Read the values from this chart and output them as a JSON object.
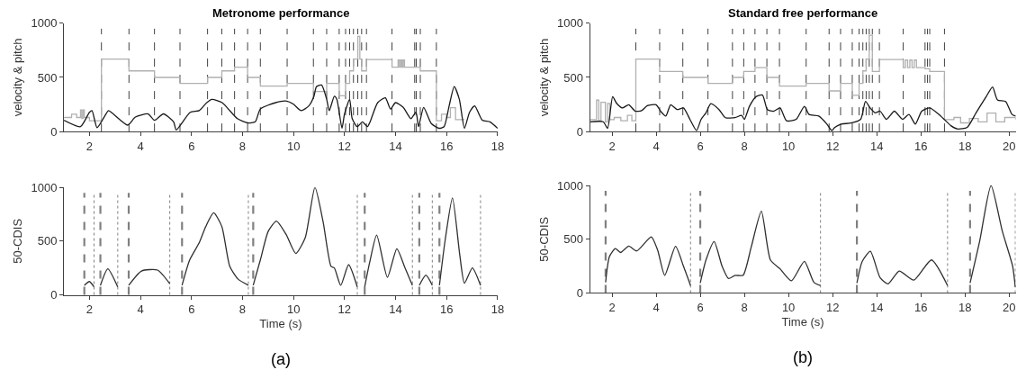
{
  "chart_data": [
    {
      "type": "line",
      "title": "Metronome performance",
      "ylabel": "velocity & pitch",
      "xlim": [
        1,
        18
      ],
      "xticks": [
        2,
        4,
        6,
        8,
        10,
        12,
        14,
        16,
        18
      ],
      "ylim": [
        0,
        1000
      ],
      "yticks": [
        0,
        500,
        1000
      ],
      "series": [
        {
          "type": "step",
          "color": "#b0b0b0",
          "x": [
            1.0,
            1.3,
            1.5,
            1.65,
            1.7,
            1.75,
            1.8,
            2.0,
            2.2,
            2.47,
            3.55,
            4.55,
            5.55,
            6.63,
            7.19,
            7.69,
            8.2,
            8.7,
            9.75,
            10.78,
            11.3,
            11.79,
            12.04,
            12.2,
            12.35,
            12.52,
            12.6,
            12.67,
            12.86,
            13.86,
            14.1,
            14.15,
            14.2,
            14.25,
            14.3,
            14.35,
            14.75,
            14.97,
            15.6,
            15.8,
            16.0,
            16.15,
            16.35,
            16.7
          ],
          "values": [
            130,
            160,
            130,
            200,
            120,
            200,
            130,
            100,
            100,
            670,
            560,
            500,
            445,
            500,
            560,
            595,
            500,
            420,
            445,
            370,
            445,
            330,
            445,
            560,
            670,
            880,
            670,
            560,
            665,
            595,
            660,
            595,
            660,
            595,
            660,
            595,
            595,
            560,
            100,
            160,
            130,
            220,
            110,
            110
          ]
        },
        {
          "type": "line",
          "color": "#1a1a1a",
          "x": [
            1.0,
            1.65,
            2.0,
            2.1,
            2.3,
            2.65,
            2.75,
            3.5,
            3.8,
            4.3,
            4.55,
            4.9,
            5.3,
            5.4,
            5.95,
            6.3,
            6.6,
            6.8,
            7.2,
            7.8,
            8.2,
            8.5,
            8.7,
            9.3,
            9.7,
            10.0,
            10.3,
            10.6,
            10.8,
            10.9,
            11.1,
            11.3,
            11.4,
            11.6,
            11.7,
            11.9,
            12.0,
            12.2,
            12.3,
            12.5,
            12.7,
            12.9,
            13.0,
            13.3,
            13.6,
            13.8,
            14.0,
            14.3,
            14.6,
            14.8,
            14.9,
            15.1,
            15.4,
            15.7,
            15.9,
            16.1,
            16.3,
            16.5,
            16.7,
            16.9,
            17.1,
            17.4,
            17.7,
            18.0
          ],
          "values": [
            104,
            45,
            178,
            193,
            36,
            163,
            193,
            59,
            134,
            163,
            104,
            163,
            89,
            15,
            178,
            193,
            267,
            297,
            267,
            119,
            80,
            90,
            208,
            267,
            282,
            252,
            193,
            237,
            326,
            415,
            430,
            297,
            193,
            326,
            297,
            30,
            163,
            297,
            119,
            45,
            89,
            45,
            89,
            267,
            312,
            208,
            267,
            223,
            119,
            178,
            45,
            223,
            74,
            30,
            45,
            237,
            415,
            297,
            30,
            178,
            237,
            104,
            89,
            30
          ]
        }
      ],
      "ref_lines": [
        {
          "axis": "x",
          "value": 2.47,
          "line_style": "dashed",
          "color": "#404040"
        },
        {
          "axis": "x",
          "value": 3.55,
          "line_style": "dashed",
          "color": "#404040"
        },
        {
          "axis": "x",
          "value": 4.55,
          "line_style": "dashed",
          "color": "#404040"
        },
        {
          "axis": "x",
          "value": 5.55,
          "line_style": "dashed",
          "color": "#404040"
        },
        {
          "axis": "x",
          "value": 6.63,
          "line_style": "dashed",
          "color": "#404040"
        },
        {
          "axis": "x",
          "value": 7.19,
          "line_style": "dashed",
          "color": "#404040"
        },
        {
          "axis": "x",
          "value": 7.69,
          "line_style": "dashed",
          "color": "#404040"
        },
        {
          "axis": "x",
          "value": 8.2,
          "line_style": "dashed",
          "color": "#404040"
        },
        {
          "axis": "x",
          "value": 8.7,
          "line_style": "dashed",
          "color": "#404040"
        },
        {
          "axis": "x",
          "value": 9.75,
          "line_style": "dashed",
          "color": "#404040"
        },
        {
          "axis": "x",
          "value": 10.78,
          "line_style": "dashed",
          "color": "#404040"
        },
        {
          "axis": "x",
          "value": 11.3,
          "line_style": "dashed",
          "color": "#404040"
        },
        {
          "axis": "x",
          "value": 11.79,
          "line_style": "dashed",
          "color": "#404040"
        },
        {
          "axis": "x",
          "value": 12.04,
          "line_style": "dashed",
          "color": "#404040"
        },
        {
          "axis": "x",
          "value": 12.2,
          "line_style": "dashed",
          "color": "#404040"
        },
        {
          "axis": "x",
          "value": 12.35,
          "line_style": "dashed",
          "color": "#404040"
        },
        {
          "axis": "x",
          "value": 12.52,
          "line_style": "dashed",
          "color": "#404040"
        },
        {
          "axis": "x",
          "value": 12.67,
          "line_style": "dashed",
          "color": "#404040"
        },
        {
          "axis": "x",
          "value": 12.86,
          "line_style": "dashed",
          "color": "#404040"
        },
        {
          "axis": "x",
          "value": 13.86,
          "line_style": "dashed",
          "color": "#404040"
        },
        {
          "axis": "x",
          "value": 14.75,
          "line_style": "dashed",
          "color": "#404040"
        },
        {
          "axis": "x",
          "value": 14.81,
          "line_style": "dashed",
          "color": "#404040"
        },
        {
          "axis": "x",
          "value": 14.97,
          "line_style": "dashed",
          "color": "#404040"
        },
        {
          "axis": "x",
          "value": 15.6,
          "line_style": "dashed",
          "color": "#404040"
        }
      ]
    },
    {
      "type": "line",
      "title": "Standard free performance",
      "ylabel": "velocity & pitch",
      "xlim": [
        1,
        20.3
      ],
      "xticks": [
        2,
        4,
        6,
        8,
        10,
        12,
        14,
        16,
        18,
        20
      ],
      "ylim": [
        0,
        1000
      ],
      "yticks": [
        0,
        500,
        1000
      ],
      "series": [
        {
          "type": "step",
          "color": "#b0b0b0",
          "x": [
            1.0,
            1.3,
            1.4,
            1.5,
            1.7,
            1.8,
            1.9,
            2.1,
            2.4,
            2.7,
            2.9,
            3.08,
            4.16,
            5.21,
            6.35,
            7.46,
            7.97,
            8.48,
            9.02,
            9.59,
            10.8,
            11.84,
            12.36,
            12.89,
            13.2,
            13.37,
            13.52,
            13.66,
            13.8,
            14.12,
            15.2,
            15.3,
            15.4,
            15.5,
            15.6,
            15.7,
            15.8,
            16.19,
            16.4,
            17.07,
            17.5,
            17.8,
            18.2,
            18.6,
            19.0,
            19.4,
            19.8,
            20.3
          ],
          "values": [
            110,
            290,
            100,
            270,
            90,
            260,
            110,
            130,
            100,
            150,
            100,
            670,
            555,
            500,
            445,
            500,
            555,
            590,
            500,
            420,
            445,
            375,
            445,
            335,
            445,
            560,
            670,
            890,
            555,
            665,
            590,
            660,
            590,
            660,
            590,
            660,
            590,
            580,
            555,
            110,
            130,
            80,
            120,
            90,
            170,
            90,
            130,
            110
          ]
        },
        {
          "type": "line",
          "color": "#1a1a1a",
          "x": [
            1.0,
            1.6,
            1.8,
            2.03,
            2.2,
            2.47,
            2.76,
            3.05,
            3.34,
            3.6,
            4.0,
            4.2,
            4.44,
            4.66,
            4.95,
            5.24,
            5.53,
            5.83,
            6.04,
            6.26,
            6.48,
            6.85,
            7.14,
            7.58,
            7.87,
            8.0,
            8.23,
            8.53,
            8.82,
            9.04,
            9.33,
            9.62,
            9.91,
            10.35,
            10.72,
            10.93,
            11.37,
            11.74,
            11.96,
            12.1,
            12.4,
            12.83,
            13.27,
            13.49,
            13.7,
            13.93,
            14.15,
            14.44,
            14.8,
            15.17,
            15.46,
            15.75,
            16.04,
            16.4,
            16.9,
            17.36,
            17.65,
            18.1,
            18.5,
            18.96,
            19.25,
            19.47,
            19.84,
            20.13,
            20.3
          ],
          "values": [
            90,
            90,
            30,
            322,
            263,
            218,
            248,
            188,
            194,
            239,
            248,
            188,
            143,
            248,
            203,
            218,
            113,
            9,
            113,
            173,
            257,
            203,
            128,
            128,
            149,
            113,
            233,
            322,
            337,
            203,
            188,
            218,
            99,
            113,
            233,
            158,
            143,
            69,
            9,
            39,
            69,
            78,
            113,
            278,
            218,
            173,
            188,
            113,
            188,
            113,
            158,
            69,
            188,
            218,
            143,
            54,
            24,
            39,
            173,
            322,
            412,
            293,
            278,
            158,
            143
          ]
        }
      ],
      "ref_lines": [
        {
          "axis": "x",
          "value": 3.08,
          "line_style": "dashed",
          "color": "#404040"
        },
        {
          "axis": "x",
          "value": 4.16,
          "line_style": "dashed",
          "color": "#404040"
        },
        {
          "axis": "x",
          "value": 5.21,
          "line_style": "dashed",
          "color": "#404040"
        },
        {
          "axis": "x",
          "value": 6.35,
          "line_style": "dashed",
          "color": "#404040"
        },
        {
          "axis": "x",
          "value": 7.46,
          "line_style": "dashed",
          "color": "#404040"
        },
        {
          "axis": "x",
          "value": 7.97,
          "line_style": "dashed",
          "color": "#404040"
        },
        {
          "axis": "x",
          "value": 8.48,
          "line_style": "dashed",
          "color": "#404040"
        },
        {
          "axis": "x",
          "value": 9.02,
          "line_style": "dashed",
          "color": "#404040"
        },
        {
          "axis": "x",
          "value": 9.59,
          "line_style": "dashed",
          "color": "#404040"
        },
        {
          "axis": "x",
          "value": 10.8,
          "line_style": "dashed",
          "color": "#404040"
        },
        {
          "axis": "x",
          "value": 11.84,
          "line_style": "dashed",
          "color": "#404040"
        },
        {
          "axis": "x",
          "value": 12.36,
          "line_style": "dashed",
          "color": "#404040"
        },
        {
          "axis": "x",
          "value": 12.89,
          "line_style": "dashed",
          "color": "#404040"
        },
        {
          "axis": "x",
          "value": 13.2,
          "line_style": "dashed",
          "color": "#404040"
        },
        {
          "axis": "x",
          "value": 13.37,
          "line_style": "dashed",
          "color": "#404040"
        },
        {
          "axis": "x",
          "value": 13.52,
          "line_style": "dashed",
          "color": "#404040"
        },
        {
          "axis": "x",
          "value": 13.66,
          "line_style": "dashed",
          "color": "#404040"
        },
        {
          "axis": "x",
          "value": 13.8,
          "line_style": "dashed",
          "color": "#404040"
        },
        {
          "axis": "x",
          "value": 14.12,
          "line_style": "dashed",
          "color": "#404040"
        },
        {
          "axis": "x",
          "value": 15.2,
          "line_style": "dashed",
          "color": "#404040"
        },
        {
          "axis": "x",
          "value": 16.19,
          "line_style": "dashed",
          "color": "#404040"
        },
        {
          "axis": "x",
          "value": 16.3,
          "line_style": "dashed",
          "color": "#404040"
        },
        {
          "axis": "x",
          "value": 16.4,
          "line_style": "dashed",
          "color": "#404040"
        },
        {
          "axis": "x",
          "value": 17.07,
          "line_style": "dashed",
          "color": "#404040"
        }
      ]
    },
    {
      "type": "line",
      "xlabel": "Time (s)",
      "ylabel": "50-CDIS",
      "annotations": [
        "(a)"
      ],
      "xlim": [
        1,
        18
      ],
      "xticks": [
        2,
        4,
        6,
        8,
        10,
        12,
        14,
        16,
        18
      ],
      "ylim": [
        0,
        1000
      ],
      "yticks": [
        0,
        500,
        1000
      ],
      "series": [
        {
          "color": "#303030",
          "x": [
            1.8,
            2.0,
            2.18,
            2.3,
            2.43,
            2.72,
            3.11,
            3.3,
            3.54,
            4.04,
            4.67,
            5.15,
            5.4,
            5.63,
            5.93,
            6.31,
            6.56,
            6.87,
            7.19,
            7.5,
            7.82,
            8.23,
            8.32,
            8.42,
            8.7,
            9.01,
            9.33,
            9.71,
            10.09,
            10.46,
            10.84,
            11.16,
            11.47,
            11.6,
            11.85,
            12.16,
            12.5,
            12.65,
            12.79,
            12.98,
            13.26,
            13.68,
            14.05,
            14.37,
            14.66,
            14.8,
            14.93,
            15.19,
            15.44,
            15.6,
            15.72,
            15.94,
            16.23,
            16.51,
            16.7,
            17.01,
            17.33
          ],
          "values": [
            89,
            124,
            74,
            null,
            89,
            243,
            74,
            null,
            89,
            222,
            231,
            104,
            null,
            89,
            325,
            488,
            636,
            763,
            636,
            266,
            148,
            89,
            null,
            89,
            325,
            592,
            686,
            562,
            385,
            533,
            1000,
            680,
            266,
            251,
            89,
            281,
            74,
            null,
            74,
            296,
            556,
            163,
            429,
            251,
            89,
            null,
            89,
            183,
            89,
            null,
            89,
            503,
            902,
            385,
            109,
            251,
            89
          ]
        }
      ],
      "ref_lines": [
        {
          "axis": "x",
          "value": 1.8,
          "line_style": "dashed",
          "color": "#808080"
        },
        {
          "axis": "x",
          "value": 2.43,
          "line_style": "dashed",
          "color": "#808080"
        },
        {
          "axis": "x",
          "value": 3.54,
          "line_style": "dashed",
          "color": "#808080"
        },
        {
          "axis": "x",
          "value": 5.63,
          "line_style": "dashed",
          "color": "#808080"
        },
        {
          "axis": "x",
          "value": 8.42,
          "line_style": "dashed",
          "color": "#808080"
        },
        {
          "axis": "x",
          "value": 12.79,
          "line_style": "dashed",
          "color": "#808080"
        },
        {
          "axis": "x",
          "value": 14.93,
          "line_style": "dashed",
          "color": "#808080"
        },
        {
          "axis": "x",
          "value": 15.72,
          "line_style": "dashed",
          "color": "#808080"
        },
        {
          "axis": "x",
          "value": 2.18,
          "line_style": "dotted",
          "color": "#808080"
        },
        {
          "axis": "x",
          "value": 3.11,
          "line_style": "dotted",
          "color": "#808080"
        },
        {
          "axis": "x",
          "value": 5.15,
          "line_style": "dotted",
          "color": "#808080"
        },
        {
          "axis": "x",
          "value": 8.23,
          "line_style": "dotted",
          "color": "#808080"
        },
        {
          "axis": "x",
          "value": 12.5,
          "line_style": "dotted",
          "color": "#808080"
        },
        {
          "axis": "x",
          "value": 14.66,
          "line_style": "dotted",
          "color": "#808080"
        },
        {
          "axis": "x",
          "value": 15.44,
          "line_style": "dotted",
          "color": "#808080"
        },
        {
          "axis": "x",
          "value": 17.33,
          "line_style": "dotted",
          "color": "#808080"
        }
      ]
    },
    {
      "type": "line",
      "xlabel": "Time (s)",
      "ylabel": "50-CDIS",
      "annotations": [
        "(b)"
      ],
      "xlim": [
        1,
        20.3
      ],
      "xticks": [
        2,
        4,
        6,
        8,
        10,
        12,
        14,
        16,
        18,
        20
      ],
      "ylim": [
        0,
        1000
      ],
      "yticks": [
        0,
        500,
        1000
      ],
      "series": [
        {
          "color": "#303030",
          "x": [
            1.71,
            1.88,
            2.15,
            2.39,
            2.76,
            3.12,
            3.78,
            4.07,
            4.39,
            4.88,
            5.24,
            5.56,
            5.8,
            6.0,
            6.26,
            6.63,
            6.99,
            7.28,
            7.58,
            7.94,
            8.31,
            8.77,
            9.18,
            9.62,
            10.13,
            10.72,
            11.15,
            11.45,
            12.3,
            13.1,
            13.34,
            13.71,
            14.15,
            14.51,
            15.02,
            15.68,
            16.48,
            17.21,
            17.7,
            18.23,
            18.67,
            19.18,
            19.69,
            20.16,
            20.28
          ],
          "values": [
            99,
            337,
            412,
            376,
            436,
            391,
            522,
            397,
            164,
            433,
            248,
            69,
            null,
            93,
            307,
            478,
            248,
            134,
            164,
            164,
            427,
            761,
            307,
            224,
            113,
            293,
            99,
            69,
            null,
            93,
            293,
            388,
            143,
            84,
            203,
            119,
            307,
            69,
            null,
            93,
            487,
            1000,
            576,
            248,
            54
          ]
        }
      ],
      "ref_lines": [
        {
          "axis": "x",
          "value": 1.71,
          "line_style": "dashed",
          "color": "#808080"
        },
        {
          "axis": "x",
          "value": 6.0,
          "line_style": "dashed",
          "color": "#808080"
        },
        {
          "axis": "x",
          "value": 13.1,
          "line_style": "dashed",
          "color": "#808080"
        },
        {
          "axis": "x",
          "value": 18.23,
          "line_style": "dashed",
          "color": "#808080"
        },
        {
          "axis": "x",
          "value": 5.56,
          "line_style": "dotted",
          "color": "#808080"
        },
        {
          "axis": "x",
          "value": 11.45,
          "line_style": "dotted",
          "color": "#808080"
        },
        {
          "axis": "x",
          "value": 17.21,
          "line_style": "dotted",
          "color": "#808080"
        },
        {
          "axis": "x",
          "value": 20.28,
          "line_style": "dotted",
          "color": "#808080"
        }
      ]
    }
  ]
}
